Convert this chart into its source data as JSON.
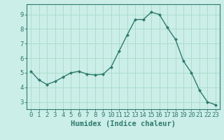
{
  "x": [
    0,
    1,
    2,
    3,
    4,
    5,
    6,
    7,
    8,
    9,
    10,
    11,
    12,
    13,
    14,
    15,
    16,
    17,
    18,
    19,
    20,
    21,
    22,
    23
  ],
  "y": [
    5.1,
    4.5,
    4.2,
    4.4,
    4.7,
    5.0,
    5.1,
    4.9,
    4.85,
    4.9,
    5.4,
    6.5,
    7.6,
    8.65,
    8.65,
    9.15,
    9.0,
    8.1,
    7.3,
    5.8,
    5.0,
    3.8,
    3.0,
    2.8
  ],
  "line_color": "#2d7a6e",
  "marker": "D",
  "marker_size": 2.0,
  "bg_color": "#cceee8",
  "grid_color": "#aaddcc",
  "xlabel": "Humidex (Indice chaleur)",
  "ylabel": "",
  "xlim": [
    -0.5,
    23.5
  ],
  "ylim": [
    2.5,
    9.7
  ],
  "xticks": [
    0,
    1,
    2,
    3,
    4,
    5,
    6,
    7,
    8,
    9,
    10,
    11,
    12,
    13,
    14,
    15,
    16,
    17,
    18,
    19,
    20,
    21,
    22,
    23
  ],
  "yticks": [
    3,
    4,
    5,
    6,
    7,
    8,
    9
  ],
  "tick_fontsize": 6.5,
  "xlabel_fontsize": 7.5,
  "axis_color": "#2d7a6e"
}
